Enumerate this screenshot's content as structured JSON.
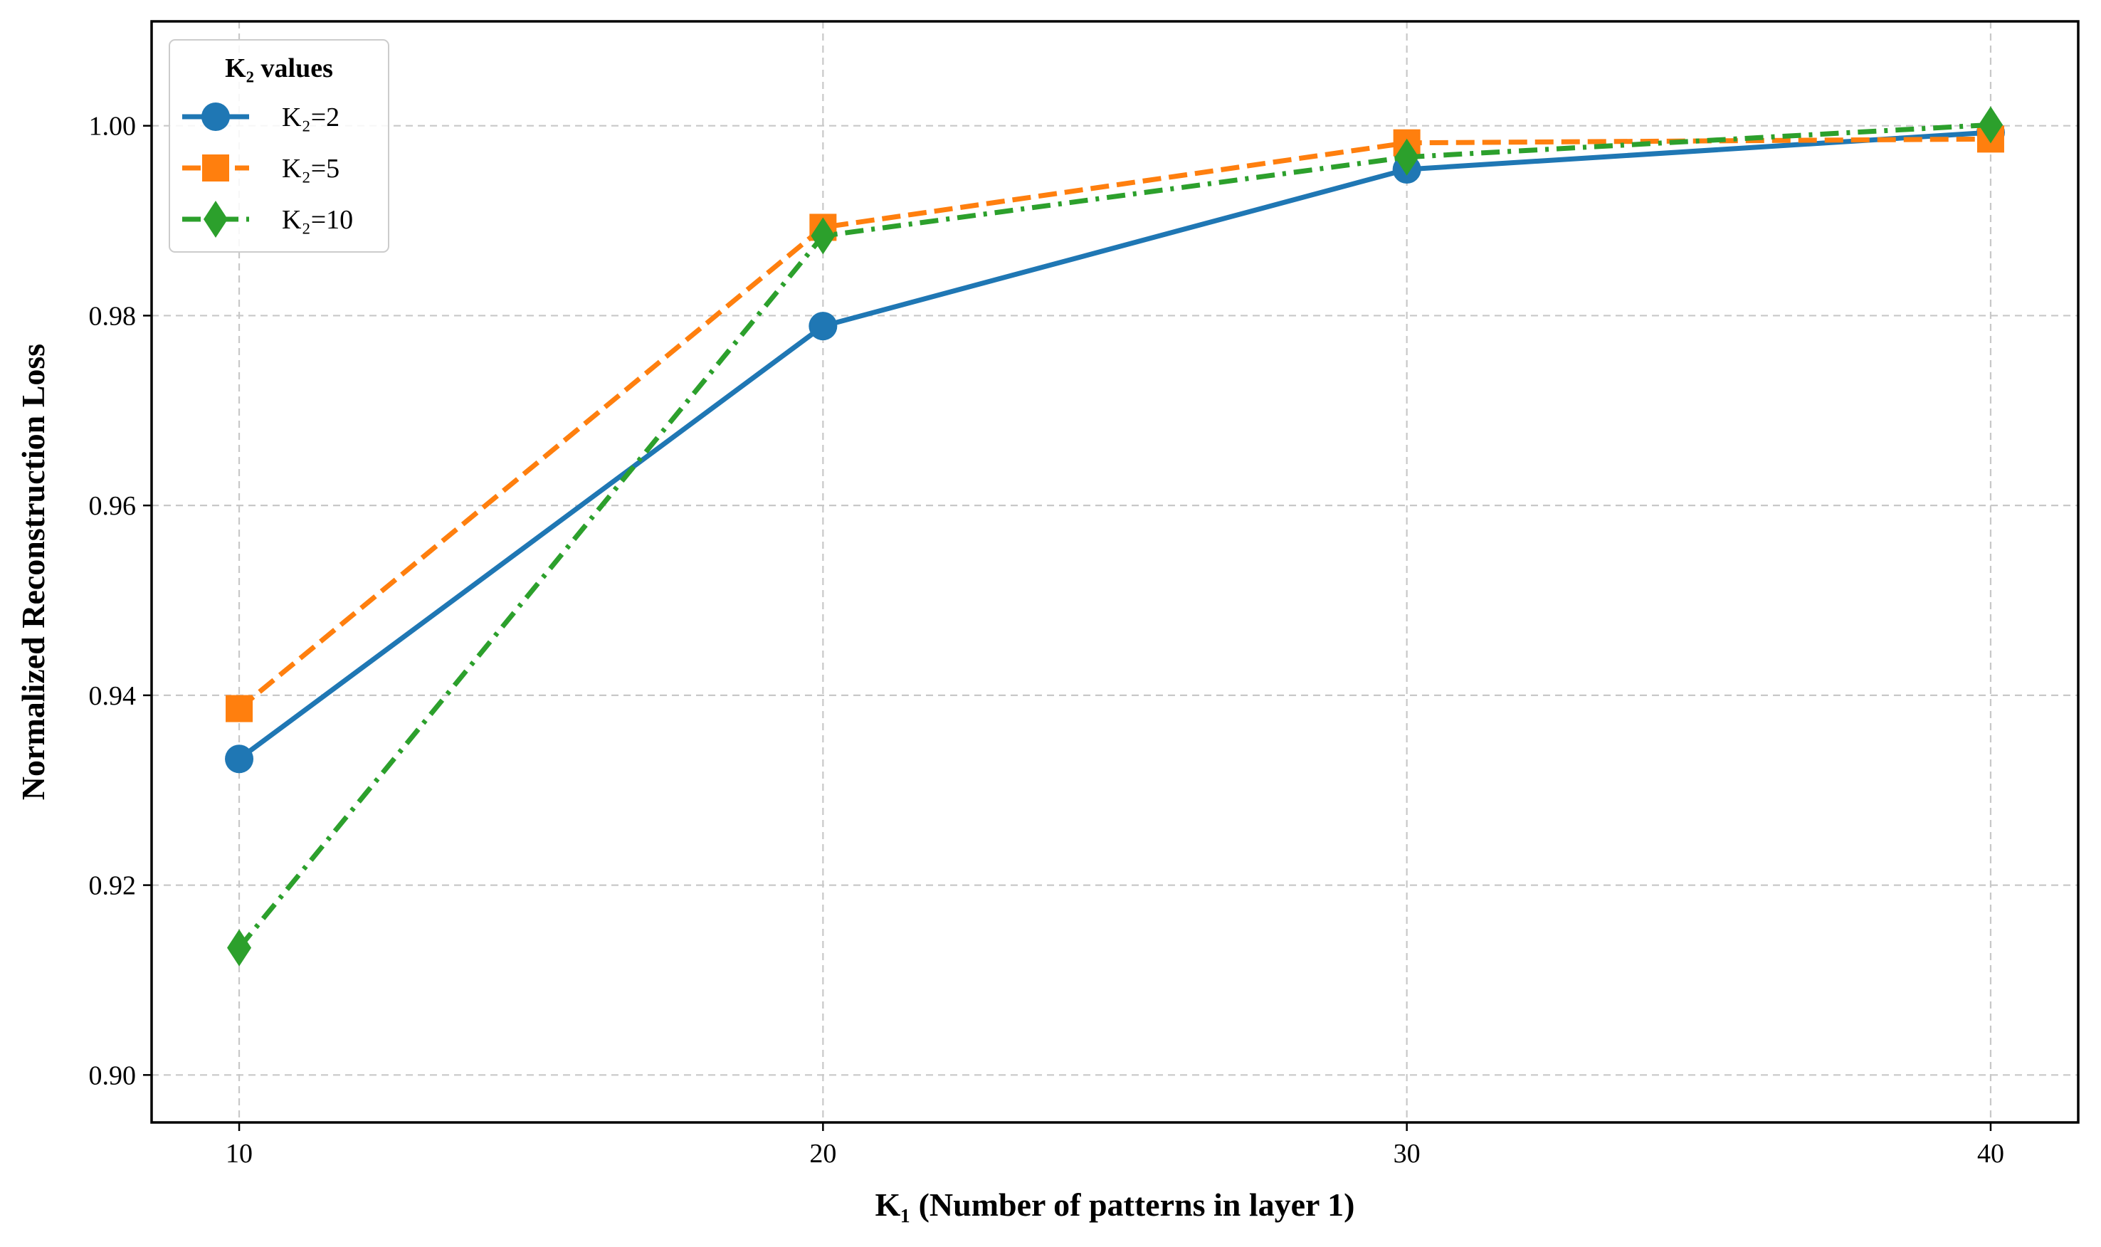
{
  "chart_data": {
    "type": "line",
    "title": "",
    "xlabel": "K₁ (Number of patterns in layer 1)",
    "ylabel": "Normalized Reconstruction Loss",
    "x": [
      10,
      20,
      30,
      40
    ],
    "xlim": [
      8.5,
      41.5
    ],
    "ylim": [
      0.895,
      1.011
    ],
    "xticks": [
      10,
      20,
      30,
      40
    ],
    "yticks": [
      0.9,
      0.92,
      0.94,
      0.96,
      0.98,
      1.0
    ],
    "ytick_labels": [
      "0.90",
      "0.92",
      "0.94",
      "0.96",
      "0.98",
      "1.00"
    ],
    "grid": true,
    "legend": {
      "title": "K₂ values",
      "position": "top-left"
    },
    "series": [
      {
        "name": "K₂=2",
        "values": [
          0.9333,
          0.9789,
          0.9954,
          0.9993
        ],
        "color": "#1f77b4",
        "linestyle": "solid",
        "marker": "circle"
      },
      {
        "name": "K₂=5",
        "values": [
          0.9386,
          0.9893,
          0.9982,
          0.9986
        ],
        "color": "#ff7f0e",
        "linestyle": "dashed",
        "marker": "square"
      },
      {
        "name": "K₂=10",
        "values": [
          0.9134,
          0.9884,
          0.9967,
          1.0001
        ],
        "color": "#2ca02c",
        "linestyle": "dashdot",
        "marker": "diamond"
      }
    ]
  }
}
